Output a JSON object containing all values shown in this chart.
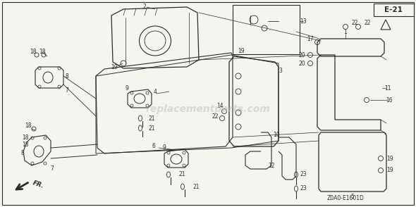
{
  "fig_width": 5.9,
  "fig_height": 2.94,
  "dpi": 100,
  "bg_color": "#f5f5f0",
  "line_color": "#2a2a2a",
  "diagram_label": "E-21",
  "diagram_code": "Z0A0-E1601D",
  "watermark": "replacementparts.com",
  "arrow_label": "FR.",
  "border_color": "#888888"
}
